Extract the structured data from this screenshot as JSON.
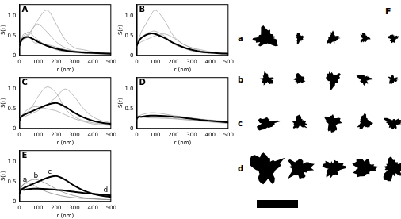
{
  "chart_data": [
    {
      "type": "line",
      "title": "A",
      "x_label": "r (nm)",
      "y_label": "S(r)",
      "x": [
        0,
        10,
        25,
        50,
        75,
        100,
        150,
        200,
        250,
        300,
        350,
        400,
        450,
        500
      ],
      "series": [
        {
          "color": "#aaaaaa",
          "values": [
            0.2,
            0.35,
            0.5,
            0.6,
            0.5,
            0.4,
            0.25,
            0.15,
            0.1,
            0.08,
            0.06,
            0.05,
            0.04,
            0.03
          ]
        },
        {
          "color": "#aaaaaa",
          "values": [
            0.3,
            0.4,
            0.45,
            0.55,
            0.7,
            0.8,
            0.6,
            0.35,
            0.2,
            0.12,
            0.1,
            0.08,
            0.07,
            0.06
          ]
        },
        {
          "color": "#aaaaaa",
          "values": [
            0.25,
            0.4,
            0.55,
            0.5,
            0.35,
            0.3,
            0.28,
            0.22,
            0.15,
            0.12,
            0.1,
            0.08,
            0.07,
            0.06
          ]
        },
        {
          "color": "#aaaaaa",
          "values": [
            0.3,
            0.35,
            0.4,
            0.5,
            0.7,
            0.9,
            1.15,
            0.8,
            0.4,
            0.2,
            0.15,
            0.1,
            0.08,
            0.07
          ]
        },
        {
          "color": "#000000",
          "values": [
            0.25,
            0.38,
            0.45,
            0.47,
            0.42,
            0.35,
            0.25,
            0.18,
            0.13,
            0.1,
            0.08,
            0.07,
            0.06,
            0.05
          ]
        }
      ],
      "xlim": [
        0,
        500
      ],
      "ylim": [
        0,
        1.3
      ],
      "xticks": [
        0,
        100,
        200,
        300,
        400,
        500
      ],
      "yticks": [
        0,
        0.5,
        1
      ]
    },
    {
      "type": "line",
      "title": "B",
      "x_label": "r (nm)",
      "y_label": "S(r)",
      "x": [
        0,
        10,
        25,
        50,
        75,
        100,
        150,
        200,
        250,
        300,
        350,
        400,
        450,
        500
      ],
      "series": [
        {
          "color": "#aaaaaa",
          "values": [
            0.3,
            0.4,
            0.6,
            0.8,
            1.0,
            1.15,
            0.9,
            0.5,
            0.3,
            0.2,
            0.15,
            0.1,
            0.08,
            0.06
          ]
        },
        {
          "color": "#aaaaaa",
          "values": [
            0.2,
            0.35,
            0.45,
            0.55,
            0.6,
            0.62,
            0.5,
            0.3,
            0.2,
            0.12,
            0.08,
            0.06,
            0.05,
            0.04
          ]
        },
        {
          "color": "#aaaaaa",
          "values": [
            0.25,
            0.3,
            0.35,
            0.4,
            0.45,
            0.5,
            0.55,
            0.45,
            0.3,
            0.2,
            0.12,
            0.08,
            0.06,
            0.05
          ]
        },
        {
          "color": "#000000",
          "values": [
            0.25,
            0.35,
            0.45,
            0.52,
            0.56,
            0.55,
            0.45,
            0.32,
            0.22,
            0.15,
            0.1,
            0.08,
            0.06,
            0.05
          ]
        }
      ],
      "xlim": [
        0,
        500
      ],
      "ylim": [
        0,
        1.3
      ],
      "xticks": [
        0,
        100,
        200,
        300,
        400,
        500
      ],
      "yticks": [
        0,
        0.5,
        1
      ]
    },
    {
      "type": "line",
      "title": "C",
      "x_label": "r (nm)",
      "y_label": "S(r)",
      "x": [
        0,
        10,
        25,
        50,
        75,
        100,
        150,
        200,
        250,
        300,
        350,
        400,
        450,
        500
      ],
      "series": [
        {
          "color": "#aaaaaa",
          "values": [
            0.2,
            0.3,
            0.35,
            0.45,
            0.6,
            0.8,
            1.05,
            0.9,
            0.5,
            0.3,
            0.2,
            0.15,
            0.12,
            0.1
          ]
        },
        {
          "color": "#aaaaaa",
          "values": [
            0.25,
            0.3,
            0.3,
            0.35,
            0.4,
            0.45,
            0.6,
            0.8,
            1.0,
            0.8,
            0.5,
            0.3,
            0.2,
            0.15
          ]
        },
        {
          "color": "#aaaaaa",
          "values": [
            0.2,
            0.3,
            0.4,
            0.5,
            0.55,
            0.55,
            0.5,
            0.45,
            0.35,
            0.25,
            0.18,
            0.12,
            0.1,
            0.08
          ]
        },
        {
          "color": "#000000",
          "values": [
            0.2,
            0.3,
            0.35,
            0.4,
            0.45,
            0.5,
            0.6,
            0.65,
            0.55,
            0.4,
            0.28,
            0.2,
            0.15,
            0.12
          ]
        }
      ],
      "xlim": [
        0,
        500
      ],
      "ylim": [
        0,
        1.3
      ],
      "xticks": [
        0,
        100,
        200,
        300,
        400,
        500
      ],
      "yticks": [
        0,
        0.5,
        1
      ]
    },
    {
      "type": "line",
      "title": "D",
      "x_label": "r (nm)",
      "y_label": "S(r)",
      "x": [
        0,
        10,
        25,
        50,
        75,
        100,
        150,
        200,
        250,
        300,
        350,
        400,
        450,
        500
      ],
      "series": [
        {
          "color": "#aaaaaa",
          "values": [
            0.2,
            0.3,
            0.35,
            0.38,
            0.4,
            0.4,
            0.37,
            0.33,
            0.3,
            0.27,
            0.24,
            0.22,
            0.2,
            0.18
          ]
        },
        {
          "color": "#aaaaaa",
          "values": [
            0.25,
            0.28,
            0.28,
            0.3,
            0.3,
            0.3,
            0.28,
            0.26,
            0.24,
            0.22,
            0.2,
            0.18,
            0.16,
            0.15
          ]
        },
        {
          "color": "#aaaaaa",
          "values": [
            0.3,
            0.32,
            0.3,
            0.28,
            0.27,
            0.27,
            0.26,
            0.25,
            0.23,
            0.21,
            0.19,
            0.17,
            0.15,
            0.13
          ]
        },
        {
          "color": "#000000",
          "values": [
            0.25,
            0.3,
            0.3,
            0.32,
            0.33,
            0.33,
            0.32,
            0.3,
            0.28,
            0.25,
            0.22,
            0.2,
            0.18,
            0.16
          ]
        }
      ],
      "xlim": [
        0,
        500
      ],
      "ylim": [
        0,
        1.3
      ],
      "xticks": [
        0,
        100,
        200,
        300,
        400,
        500
      ],
      "yticks": [
        0,
        0.5,
        1
      ]
    },
    {
      "type": "line",
      "title": "E",
      "x_label": "r (nm)",
      "y_label": "S(r)",
      "x": [
        0,
        10,
        25,
        50,
        75,
        100,
        150,
        200,
        250,
        300,
        350,
        400,
        450,
        500
      ],
      "series": [
        {
          "color": "#888888",
          "values": [
            0.25,
            0.38,
            0.45,
            0.47,
            0.42,
            0.35,
            0.25,
            0.18,
            0.13,
            0.1,
            0.08,
            0.07,
            0.06,
            0.05
          ]
        },
        {
          "color": "#888888",
          "values": [
            0.25,
            0.35,
            0.45,
            0.52,
            0.56,
            0.55,
            0.45,
            0.32,
            0.22,
            0.15,
            0.1,
            0.08,
            0.06,
            0.05
          ]
        },
        {
          "color": "#000000",
          "values": [
            0.2,
            0.3,
            0.35,
            0.4,
            0.45,
            0.5,
            0.6,
            0.65,
            0.55,
            0.4,
            0.28,
            0.2,
            0.15,
            0.12
          ]
        },
        {
          "color": "#000000",
          "values": [
            0.25,
            0.3,
            0.3,
            0.32,
            0.33,
            0.33,
            0.32,
            0.3,
            0.28,
            0.25,
            0.22,
            0.2,
            0.18,
            0.16
          ]
        }
      ],
      "annotations": [
        {
          "text": "a",
          "x": 30,
          "y": 0.55
        },
        {
          "text": "b",
          "x": 90,
          "y": 0.65
        },
        {
          "text": "c",
          "x": 165,
          "y": 0.75
        },
        {
          "text": "d",
          "x": 470,
          "y": 0.3
        }
      ],
      "xlim": [
        0,
        500
      ],
      "ylim": [
        0,
        1.3
      ],
      "xticks": [
        0,
        100,
        200,
        300,
        400,
        500
      ],
      "yticks": [
        0,
        0.5,
        1
      ]
    }
  ],
  "image_panel": {
    "label": "F",
    "row_labels": [
      "a",
      "b",
      "c",
      "d"
    ]
  }
}
